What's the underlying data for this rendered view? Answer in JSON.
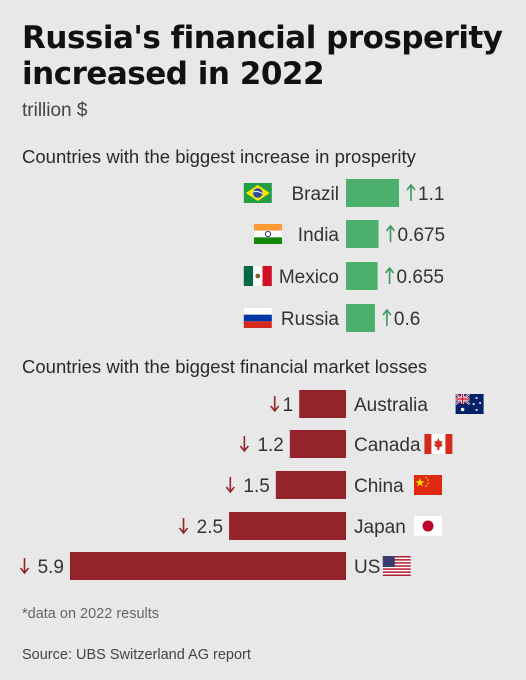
{
  "title": "Russia's financial prosperity increased in 2022",
  "subtitle": "trillion $",
  "note": "*data on 2022 results",
  "source": "Source: UBS Switzerland AG report",
  "colors": {
    "gain": "#4caf6b",
    "loss": "#94232c",
    "up_arrow": "#3a9a5a",
    "down_arrow": "#94232c"
  },
  "chart_data": [
    {
      "type": "bar",
      "title": "Countries with the biggest increase in prosperity",
      "categories": [
        "Brazil",
        "India",
        "Mexico",
        "Russia"
      ],
      "values": [
        1.1,
        0.675,
        0.655,
        0.6
      ],
      "value_labels": [
        "1.1",
        "0.675",
        "0.655",
        "0.6"
      ],
      "flags": [
        "brazil-flag-icon",
        "india-flag-icon",
        "mexico-flag-icon",
        "russia-flag-icon"
      ],
      "direction": "increase"
    },
    {
      "type": "bar",
      "title": "Countries with the biggest financial market losses",
      "categories": [
        "Australia",
        "Canada",
        "China",
        "Japan",
        "US"
      ],
      "values": [
        1,
        1.2,
        1.5,
        2.5,
        5.9
      ],
      "value_labels": [
        "1",
        "1.2",
        "1.5",
        "2.5",
        "5.9"
      ],
      "flags": [
        "australia-flag-icon",
        "canada-flag-icon",
        "china-flag-icon",
        "japan-flag-icon",
        "us-flag-icon"
      ],
      "direction": "decrease"
    }
  ]
}
